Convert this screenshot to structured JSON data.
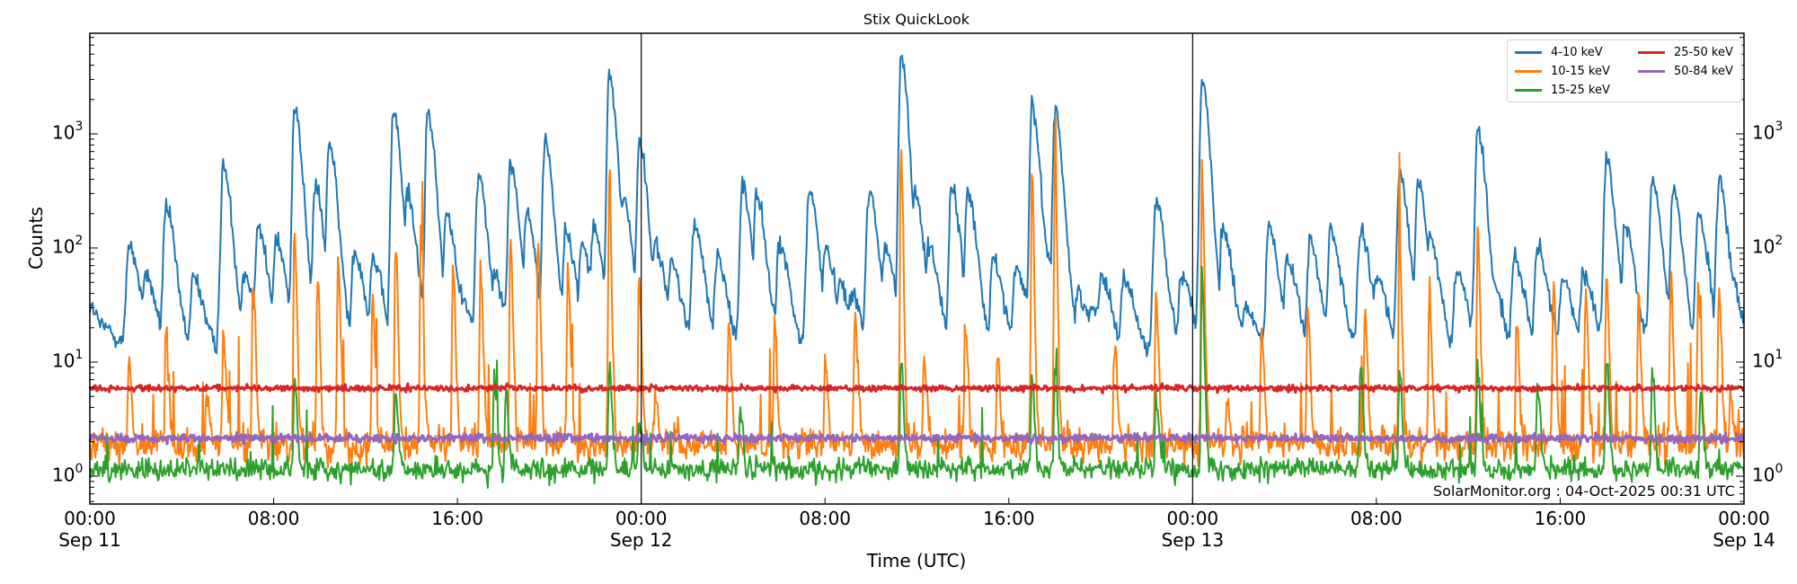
{
  "header": {
    "title": "Stix QuickLook"
  },
  "axes": {
    "ylabel": "Counts",
    "xlabel": "Time (UTC)",
    "yticks": [
      {
        "base": "10",
        "exp": "0",
        "value": 1
      },
      {
        "base": "10",
        "exp": "1",
        "value": 10
      },
      {
        "base": "10",
        "exp": "2",
        "value": 100
      },
      {
        "base": "10",
        "exp": "3",
        "value": 1000
      }
    ],
    "xticks": [
      {
        "time": "00:00",
        "date": "Sep 11",
        "hour": 0
      },
      {
        "time": "08:00",
        "date": "",
        "hour": 8
      },
      {
        "time": "16:00",
        "date": "",
        "hour": 16
      },
      {
        "time": "00:00",
        "date": "Sep 12",
        "hour": 24
      },
      {
        "time": "08:00",
        "date": "",
        "hour": 32
      },
      {
        "time": "16:00",
        "date": "",
        "hour": 40
      },
      {
        "time": "00:00",
        "date": "Sep 13",
        "hour": 48
      },
      {
        "time": "08:00",
        "date": "",
        "hour": 56
      },
      {
        "time": "16:00",
        "date": "",
        "hour": 64
      },
      {
        "time": "00:00",
        "date": "Sep 14",
        "hour": 72
      }
    ]
  },
  "legend": {
    "items": [
      {
        "label": "4-10 keV",
        "color": "#1f77b4"
      },
      {
        "label": "10-15 keV",
        "color": "#ff7f0e"
      },
      {
        "label": "15-25 keV",
        "color": "#2ca02c"
      },
      {
        "label": "25-50 keV",
        "color": "#d62728"
      },
      {
        "label": "50-84 keV",
        "color": "#9467bd"
      }
    ]
  },
  "watermark": "SolarMonitor.org : 04-Oct-2025 00:31 UTC",
  "chart_data": {
    "type": "line",
    "title": "Stix QuickLook",
    "xlabel": "Time (UTC)",
    "ylabel": "Counts",
    "yscale": "log",
    "ylim": [
      0.57,
      7700
    ],
    "xlim_hours": [
      0,
      72
    ],
    "x_range_label": [
      "Sep 11 00:00",
      "Sep 14 00:00"
    ],
    "day_boundaries_hours": [
      24,
      48
    ],
    "legend_position": "upper right",
    "grid": false,
    "series": [
      {
        "name": "4-10 keV",
        "color": "#1f77b4",
        "baseline": 12,
        "peaks_hours_values": [
          [
            0.0,
            30
          ],
          [
            1.0,
            10
          ],
          [
            1.7,
            110
          ],
          [
            2.4,
            60
          ],
          [
            3.3,
            230
          ],
          [
            4.5,
            55
          ],
          [
            5.8,
            520
          ],
          [
            6.7,
            60
          ],
          [
            7.3,
            160
          ],
          [
            8.1,
            120
          ],
          [
            8.9,
            1750
          ],
          [
            9.8,
            350
          ],
          [
            10.4,
            850
          ],
          [
            11.5,
            95
          ],
          [
            12.3,
            80
          ],
          [
            13.2,
            1600
          ],
          [
            13.8,
            320
          ],
          [
            14.7,
            1600
          ],
          [
            15.5,
            200
          ],
          [
            16.1,
            40
          ],
          [
            16.9,
            450
          ],
          [
            17.6,
            60
          ],
          [
            18.3,
            550
          ],
          [
            19.0,
            200
          ],
          [
            19.8,
            900
          ],
          [
            20.7,
            140
          ],
          [
            21.4,
            110
          ],
          [
            21.9,
            160
          ],
          [
            22.6,
            3500
          ],
          [
            23.2,
            280
          ],
          [
            23.9,
            850
          ],
          [
            24.6,
            110
          ],
          [
            25.3,
            75
          ],
          [
            26.3,
            160
          ],
          [
            27.3,
            80
          ],
          [
            28.4,
            350
          ],
          [
            29.0,
            300
          ],
          [
            30.0,
            110
          ],
          [
            31.3,
            330
          ],
          [
            32.0,
            100
          ],
          [
            32.6,
            50
          ],
          [
            33.1,
            40
          ],
          [
            33.9,
            330
          ],
          [
            34.6,
            100
          ],
          [
            35.3,
            4800
          ],
          [
            35.9,
            300
          ],
          [
            36.5,
            110
          ],
          [
            37.5,
            320
          ],
          [
            38.2,
            310
          ],
          [
            39.3,
            80
          ],
          [
            40.3,
            70
          ],
          [
            41.0,
            1750
          ],
          [
            41.5,
            110
          ],
          [
            42.0,
            1600
          ],
          [
            43.0,
            40
          ],
          [
            44.0,
            60
          ],
          [
            45.0,
            55
          ],
          [
            46.4,
            260
          ],
          [
            47.5,
            60
          ],
          [
            48.4,
            2900
          ],
          [
            49.3,
            150
          ],
          [
            50.3,
            30
          ],
          [
            51.3,
            150
          ],
          [
            52.1,
            80
          ],
          [
            53.1,
            110
          ],
          [
            54.0,
            150
          ],
          [
            55.3,
            140
          ],
          [
            56.0,
            55
          ],
          [
            57.0,
            480
          ],
          [
            57.8,
            400
          ],
          [
            58.3,
            120
          ],
          [
            59.5,
            60
          ],
          [
            60.4,
            1150
          ],
          [
            61.0,
            60
          ],
          [
            62.0,
            80
          ],
          [
            63.0,
            100
          ],
          [
            64.1,
            55
          ],
          [
            65.0,
            60
          ],
          [
            66.0,
            600
          ],
          [
            66.8,
            160
          ],
          [
            68.0,
            400
          ],
          [
            68.9,
            330
          ],
          [
            70.0,
            200
          ],
          [
            70.9,
            380
          ],
          [
            71.3,
            75
          ],
          [
            71.8,
            10
          ],
          [
            72.0,
            18
          ]
        ]
      },
      {
        "name": "10-15 keV",
        "color": "#ff7f0e",
        "baseline": 1.9,
        "peaks_hours_values": [
          [
            1.7,
            10
          ],
          [
            3.3,
            20
          ],
          [
            5.1,
            6
          ],
          [
            5.8,
            20
          ],
          [
            7.1,
            50
          ],
          [
            8.9,
            150
          ],
          [
            9.9,
            60
          ],
          [
            10.8,
            80
          ],
          [
            12.3,
            40
          ],
          [
            13.3,
            130
          ],
          [
            14.4,
            150
          ],
          [
            15.8,
            75
          ],
          [
            17.0,
            70
          ],
          [
            18.3,
            130
          ],
          [
            19.5,
            120
          ],
          [
            20.8,
            70
          ],
          [
            22.6,
            450
          ],
          [
            23.9,
            60
          ],
          [
            24.6,
            6
          ],
          [
            25.5,
            3
          ],
          [
            27.8,
            25
          ],
          [
            29.8,
            20
          ],
          [
            32.0,
            10
          ],
          [
            33.3,
            30
          ],
          [
            35.3,
            950
          ],
          [
            36.3,
            10
          ],
          [
            38.1,
            20
          ],
          [
            39.5,
            12
          ],
          [
            41.0,
            450
          ],
          [
            42.0,
            550
          ],
          [
            44.6,
            18
          ],
          [
            46.4,
            40
          ],
          [
            48.4,
            550
          ],
          [
            49.5,
            5
          ],
          [
            51.0,
            20
          ],
          [
            53.0,
            30
          ],
          [
            55.5,
            30
          ],
          [
            57.0,
            110
          ],
          [
            58.3,
            40
          ],
          [
            60.4,
            150
          ],
          [
            62.1,
            20
          ],
          [
            63.7,
            60
          ],
          [
            65.1,
            40
          ],
          [
            66.0,
            60
          ],
          [
            67.4,
            35
          ],
          [
            68.8,
            60
          ],
          [
            70.0,
            45
          ],
          [
            70.9,
            40
          ],
          [
            71.4,
            5
          ]
        ]
      },
      {
        "name": "15-25 keV",
        "color": "#2ca02c",
        "baseline": 1.15,
        "peaks_hours_values": [
          [
            8.9,
            7
          ],
          [
            13.3,
            6
          ],
          [
            17.6,
            7
          ],
          [
            18.1,
            6
          ],
          [
            22.6,
            10
          ],
          [
            23.9,
            3.5
          ],
          [
            28.3,
            4
          ],
          [
            35.3,
            10
          ],
          [
            41.0,
            7
          ],
          [
            42.0,
            8
          ],
          [
            46.4,
            5
          ],
          [
            48.4,
            60
          ],
          [
            55.3,
            10
          ],
          [
            57.0,
            9
          ],
          [
            60.4,
            10
          ],
          [
            63.0,
            7
          ],
          [
            66.0,
            10
          ],
          [
            68.0,
            8
          ],
          [
            70.1,
            5
          ]
        ]
      },
      {
        "name": "25-50 keV",
        "color": "#d62728",
        "baseline": 5.9,
        "peaks_hours_values": []
      },
      {
        "name": "50-84 keV",
        "color": "#9467bd",
        "baseline": 2.15,
        "peaks_hours_values": []
      }
    ]
  }
}
